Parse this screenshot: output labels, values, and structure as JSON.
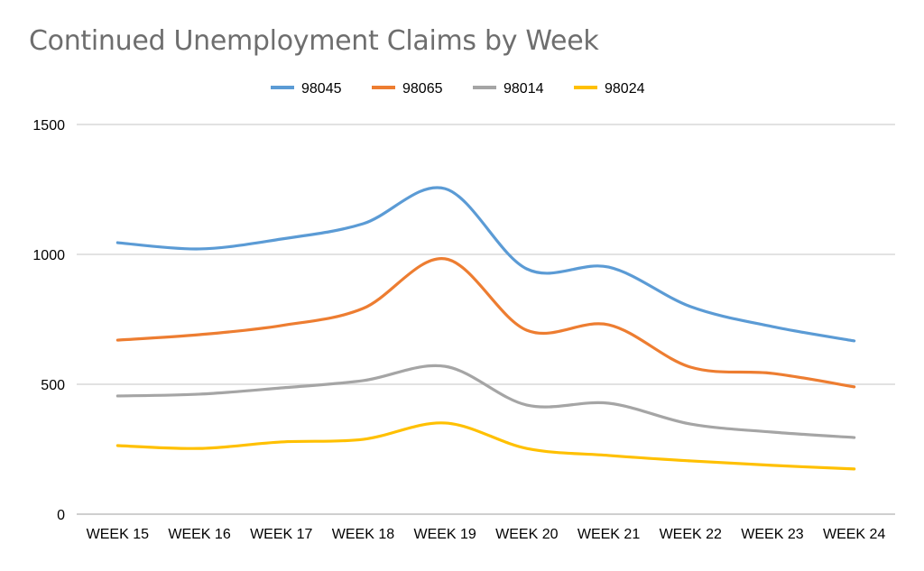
{
  "chart_data": {
    "type": "line",
    "title": "Continued Unemployment Claims by Week",
    "xlabel": "",
    "ylabel": "",
    "categories": [
      "WEEK 15",
      "WEEK 16",
      "WEEK 17",
      "WEEK 18",
      "WEEK 19",
      "WEEK 20",
      "WEEK 21",
      "WEEK 22",
      "WEEK 23",
      "WEEK 24"
    ],
    "ylim": [
      0,
      1500
    ],
    "yticks": [
      0,
      500,
      1000,
      1500
    ],
    "grid": true,
    "smooth": true,
    "legend_position": "top",
    "series": [
      {
        "name": "98045",
        "color": "#5b9bd5",
        "values": [
          1045,
          1021,
          1059,
          1118,
          1253,
          944,
          951,
          799,
          722,
          667
        ]
      },
      {
        "name": "98065",
        "color": "#ed7d31",
        "values": [
          670,
          691,
          726,
          792,
          983,
          708,
          729,
          566,
          542,
          490
        ]
      },
      {
        "name": "98014",
        "color": "#a5a5a5",
        "values": [
          455,
          462,
          486,
          514,
          569,
          420,
          427,
          347,
          316,
          295
        ]
      },
      {
        "name": "98024",
        "color": "#ffc000",
        "values": [
          264,
          253,
          278,
          288,
          351,
          253,
          226,
          205,
          188,
          174
        ]
      }
    ]
  }
}
